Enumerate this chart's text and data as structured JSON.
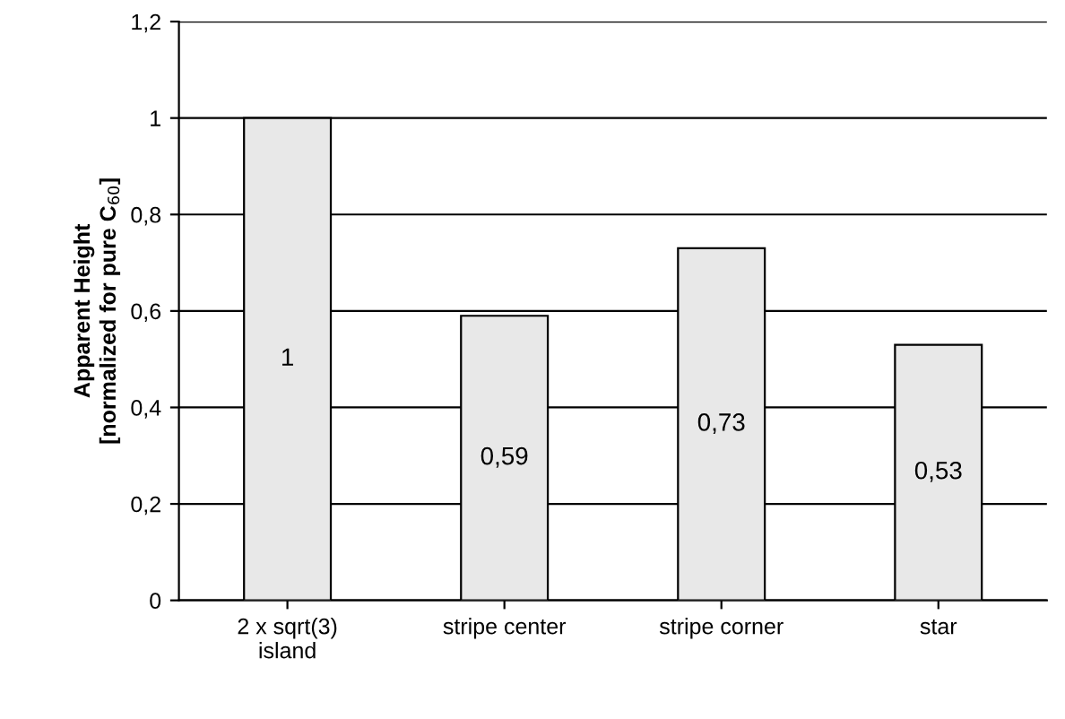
{
  "chart_data": {
    "type": "bar",
    "ylabel": "Apparent Height\n[normalized for pure C$_{60}$]",
    "categories": [
      "2 x sqrt(3)\nisland",
      "stripe center",
      "stripe corner",
      "star"
    ],
    "values": [
      1,
      0.59,
      0.73,
      0.53
    ],
    "color": "#e8e8e8",
    "value_labels": [
      "1",
      "0,59",
      "0,73",
      "0,53"
    ],
    "ylim": [
      0,
      1.2
    ],
    "yticks": [
      0,
      {
        "value": 0.2,
        "label": "0,2"
      },
      {
        "value": 0.4,
        "label": "0,4"
      },
      {
        "value": 0.6,
        "label": "0,6"
      },
      {
        "value": 0.8,
        "label": "0,8"
      },
      1,
      {
        "value": 1.2,
        "label": "1,2"
      }
    ],
    "grid": "y",
    "legend": false
  }
}
